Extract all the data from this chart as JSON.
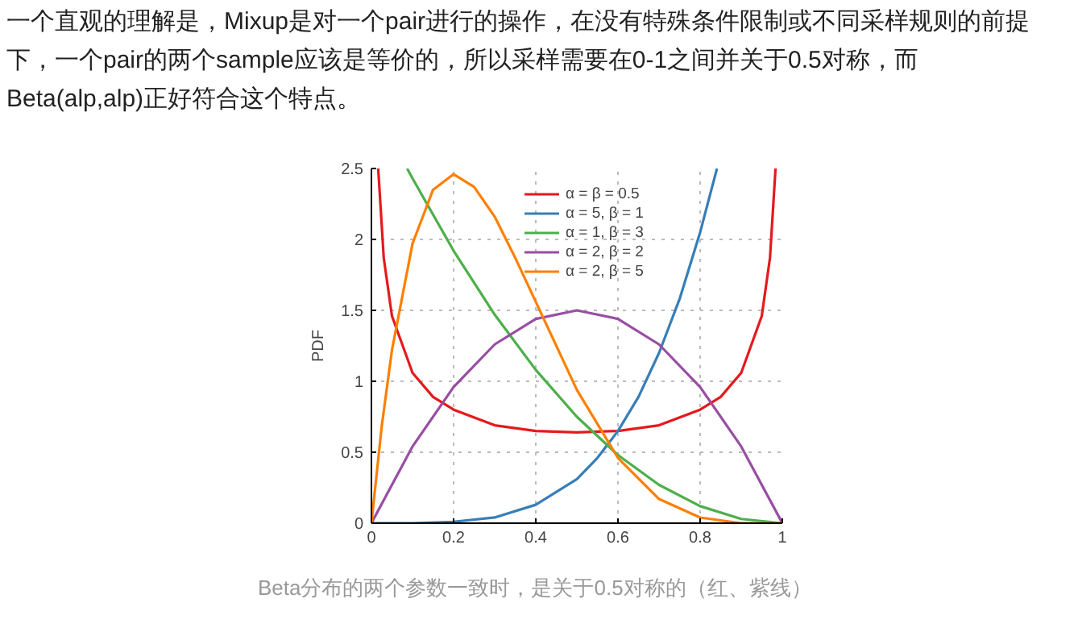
{
  "chart_data": {
    "type": "line",
    "ylabel": "PDF",
    "annotations": [
      "一个直观的理解是，Mixup是对一个pair进行的操作，在没有特殊条件限制或不同采样规则的前提",
      "下，一个pair的两个sample应该是等价的，所以采样需要在0-1之间并关于0.5对称，而",
      "Beta(alp,alp)正好符合这个特点。",
      "Beta分布的两个参数一致时，是关于0.5对称的（红、紫线）"
    ],
    "xlim": [
      0,
      1
    ],
    "ylim": [
      0,
      2.5
    ],
    "xticks": [
      0,
      0.2,
      0.4,
      0.6,
      0.8,
      1
    ],
    "yticks": [
      0,
      0.5,
      1,
      1.5,
      2,
      2.5
    ],
    "grid": true,
    "legend": "top right",
    "line_style": "solid",
    "series": [
      {
        "name": "α = β = 0.5",
        "color": "#e41a1c",
        "x": [
          0.0165,
          0.03,
          0.05,
          0.1,
          0.15,
          0.2,
          0.3,
          0.4,
          0.5,
          0.6,
          0.7,
          0.8,
          0.85,
          0.9,
          0.95,
          0.97,
          0.9835
        ],
        "values": [
          2.5,
          1.87,
          1.46,
          1.06,
          0.89,
          0.8,
          0.69,
          0.65,
          0.64,
          0.65,
          0.69,
          0.8,
          0.89,
          1.06,
          1.46,
          1.87,
          2.5
        ]
      },
      {
        "name": "α = 5, β = 1",
        "color": "#377eb8",
        "x": [
          0,
          0.1,
          0.2,
          0.3,
          0.4,
          0.5,
          0.55,
          0.6,
          0.65,
          0.7,
          0.75,
          0.8,
          0.841
        ],
        "values": [
          0,
          0,
          0.01,
          0.04,
          0.13,
          0.31,
          0.46,
          0.65,
          0.89,
          1.2,
          1.58,
          2.05,
          2.5
        ]
      },
      {
        "name": "α = 1, β = 3",
        "color": "#4daf4a",
        "x": [
          0.087,
          0.1,
          0.2,
          0.3,
          0.4,
          0.5,
          0.6,
          0.7,
          0.8,
          0.9,
          1
        ],
        "values": [
          2.5,
          2.43,
          1.92,
          1.47,
          1.08,
          0.75,
          0.48,
          0.27,
          0.12,
          0.03,
          0
        ]
      },
      {
        "name": "α = 2, β = 2",
        "color": "#984ea3",
        "x": [
          0,
          0.1,
          0.2,
          0.3,
          0.4,
          0.5,
          0.6,
          0.7,
          0.8,
          0.9,
          1
        ],
        "values": [
          0,
          0.54,
          0.96,
          1.26,
          1.44,
          1.5,
          1.44,
          1.26,
          0.96,
          0.54,
          0
        ]
      },
      {
        "name": "α = 2, β = 5",
        "color": "#ff7f00",
        "x": [
          0,
          0.025,
          0.05,
          0.1,
          0.15,
          0.2,
          0.25,
          0.3,
          0.35,
          0.4,
          0.5,
          0.6,
          0.7,
          0.8,
          0.9,
          1
        ],
        "values": [
          0,
          0.68,
          1.22,
          1.97,
          2.35,
          2.46,
          2.37,
          2.16,
          1.87,
          1.56,
          0.94,
          0.46,
          0.17,
          0.04,
          0,
          0
        ]
      }
    ]
  }
}
